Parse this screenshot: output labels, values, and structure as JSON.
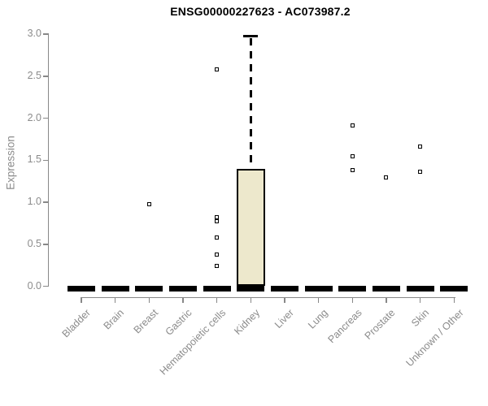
{
  "page": {
    "background": "#FFFFFF"
  },
  "chart_data": {
    "type": "box",
    "title": "ENSG00000227623 - AC073987.2",
    "ylabel": "Expression",
    "xlabel": "",
    "ylim": [
      0,
      3
    ],
    "ytick_labels": [
      "0.0",
      "0.5",
      "1.0",
      "1.5",
      "2.0",
      "2.5",
      "3.0"
    ],
    "grid": false,
    "legend": false,
    "categories": [
      "Bladder",
      "Brain",
      "Breast",
      "Gastric",
      "Hematopoietic cells",
      "Kidney",
      "Liver",
      "Lung",
      "Pancreas",
      "Prostate",
      "Skin",
      "Unknown / Other"
    ],
    "boxes": [
      {
        "category": "Bladder",
        "median": 0,
        "q1": 0,
        "q3": 0,
        "whisker_low": 0,
        "whisker_high": 0,
        "outliers": []
      },
      {
        "category": "Brain",
        "median": 0,
        "q1": 0,
        "q3": 0,
        "whisker_low": 0,
        "whisker_high": 0,
        "outliers": []
      },
      {
        "category": "Breast",
        "median": 0,
        "q1": 0,
        "q3": 0,
        "whisker_low": 0,
        "whisker_high": 0,
        "outliers": [
          0.98
        ]
      },
      {
        "category": "Gastric",
        "median": 0,
        "q1": 0,
        "q3": 0,
        "whisker_low": 0,
        "whisker_high": 0,
        "outliers": []
      },
      {
        "category": "Hematopoietic cells",
        "median": 0,
        "q1": 0,
        "q3": 0,
        "whisker_low": 0,
        "whisker_high": 0,
        "outliers": [
          2.58,
          0.82,
          0.77,
          0.58,
          0.38,
          0.24
        ]
      },
      {
        "category": "Kidney",
        "median": 0,
        "q1": 0,
        "q3": 1.4,
        "whisker_low": 0,
        "whisker_high": 2.98,
        "outliers": []
      },
      {
        "category": "Liver",
        "median": 0,
        "q1": 0,
        "q3": 0,
        "whisker_low": 0,
        "whisker_high": 0,
        "outliers": []
      },
      {
        "category": "Lung",
        "median": 0,
        "q1": 0,
        "q3": 0,
        "whisker_low": 0,
        "whisker_high": 0,
        "outliers": []
      },
      {
        "category": "Pancreas",
        "median": 0,
        "q1": 0,
        "q3": 0,
        "whisker_low": 0,
        "whisker_high": 0,
        "outliers": [
          1.91,
          1.55,
          1.38
        ]
      },
      {
        "category": "Prostate",
        "median": 0,
        "q1": 0,
        "q3": 0,
        "whisker_low": 0,
        "whisker_high": 0,
        "outliers": [
          1.29
        ]
      },
      {
        "category": "Skin",
        "median": 0,
        "q1": 0,
        "q3": 0,
        "whisker_low": 0,
        "whisker_high": 0,
        "outliers": [
          1.66,
          1.36
        ]
      },
      {
        "category": "Unknown / Other",
        "median": 0,
        "q1": 0,
        "q3": 0,
        "whisker_low": 0,
        "whisker_high": 0,
        "outliers": []
      }
    ],
    "colors": {
      "box_fill": "#EDE8CC",
      "box_border": "#000000",
      "median": "#000000",
      "outlier": "#000000",
      "axis_line": "#888888",
      "tick_text": "#8B8B8B",
      "title_text": "#000000"
    }
  }
}
